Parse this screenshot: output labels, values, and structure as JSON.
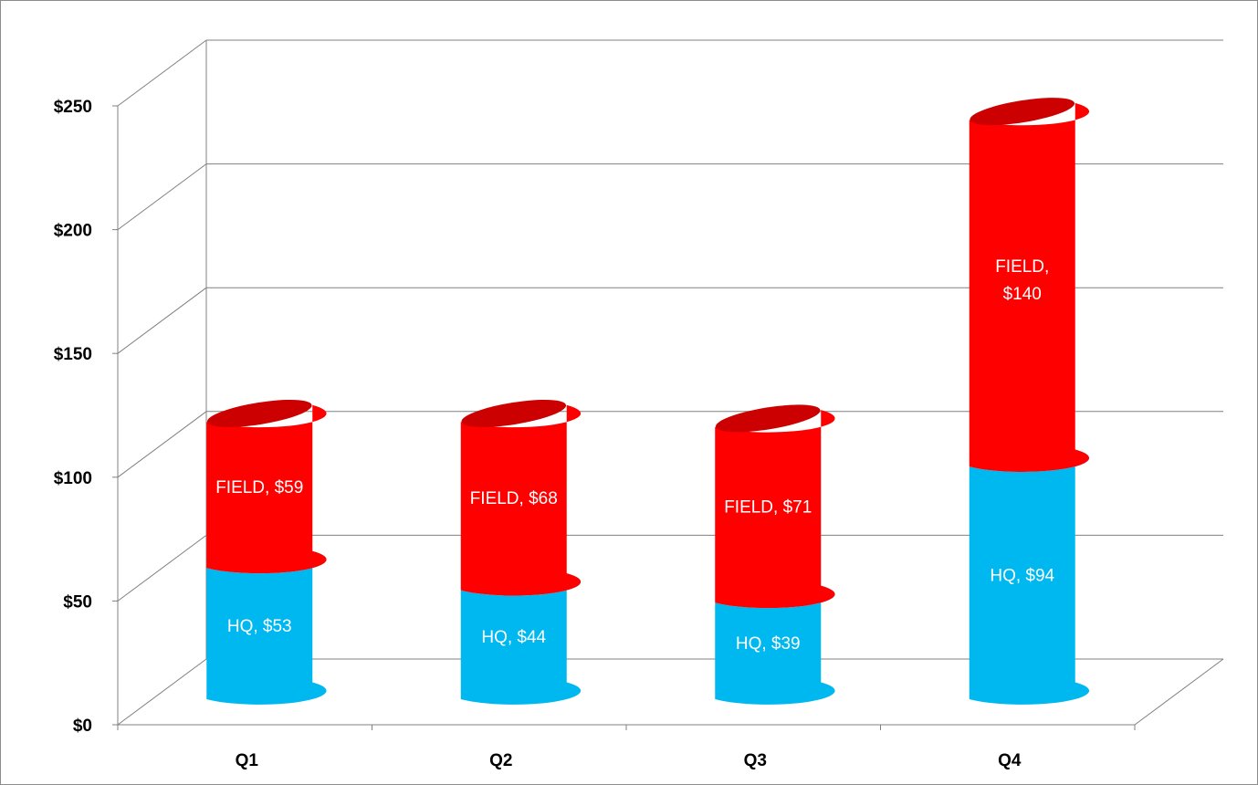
{
  "chart_data": {
    "type": "bar",
    "subtype": "stacked-3d-cylinder",
    "categories": [
      "Q1",
      "Q2",
      "Q3",
      "Q4"
    ],
    "series": [
      {
        "name": "HQ",
        "values": [
          53,
          44,
          39,
          94
        ],
        "color": "#00b8f0",
        "labels": [
          "HQ, $53",
          "HQ, $44",
          "HQ, $39",
          "HQ, $94"
        ]
      },
      {
        "name": "FIELD",
        "values": [
          59,
          68,
          71,
          140
        ],
        "color": "#ff0000",
        "labels": [
          "FIELD, $59",
          "FIELD, $68",
          "FIELD, $71",
          "FIELD, $140"
        ]
      }
    ],
    "ylim": [
      0,
      250
    ],
    "yticks": [
      0,
      50,
      100,
      150,
      200,
      250
    ],
    "ytick_labels": [
      "$0",
      "$50",
      "$100",
      "$150",
      "$200",
      "$250"
    ],
    "grid": true,
    "legend": "none",
    "title": "",
    "xlabel": "",
    "ylabel": ""
  }
}
